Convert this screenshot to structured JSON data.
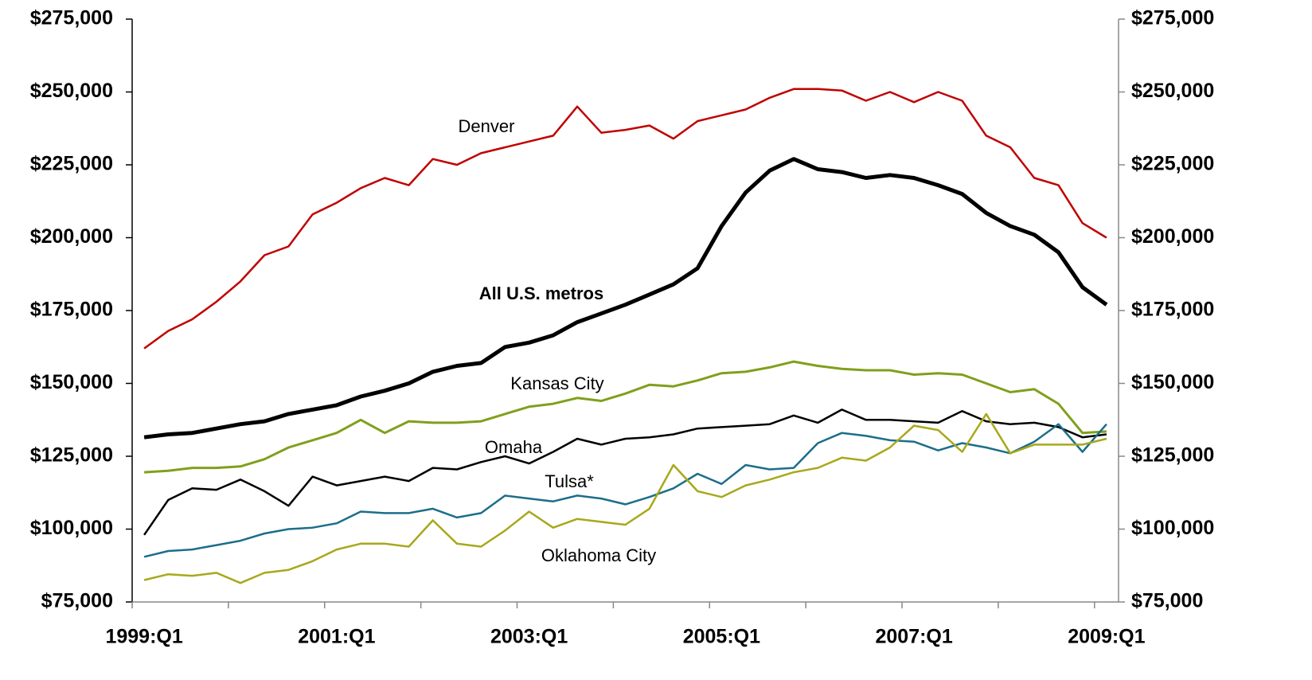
{
  "chart_data": {
    "type": "line",
    "categories": [
      "1999:Q1",
      null,
      null,
      null,
      null,
      null,
      null,
      null,
      "2001:Q1",
      null,
      null,
      null,
      null,
      null,
      null,
      null,
      "2003:Q1",
      null,
      null,
      null,
      null,
      null,
      null,
      null,
      "2005:Q1",
      null,
      null,
      null,
      null,
      null,
      null,
      null,
      "2007:Q1",
      null,
      null,
      null,
      null,
      null,
      null,
      null,
      "2009:Q1"
    ],
    "ylim": [
      75000,
      275000
    ],
    "yticks": [
      {
        "value": 75000,
        "label": "$75,000"
      },
      {
        "value": 100000,
        "label": "$100,000"
      },
      {
        "value": 125000,
        "label": "$125,000"
      },
      {
        "value": 150000,
        "label": "$150,000"
      },
      {
        "value": 175000,
        "label": "$175,000"
      },
      {
        "value": 200000,
        "label": "$200,000"
      },
      {
        "value": 225000,
        "label": "$225,000"
      },
      {
        "value": 250000,
        "label": "$250,000"
      },
      {
        "value": 275000,
        "label": "$275,000"
      }
    ],
    "grid": false,
    "series": [
      {
        "name": "Denver",
        "color": "#c00000",
        "values": [
          162000,
          168000,
          172000,
          178000,
          185000,
          194000,
          197000,
          208000,
          212000,
          217000,
          220500,
          218000,
          227000,
          225000,
          229000,
          231000,
          233000,
          235000,
          245000,
          236000,
          237000,
          238500,
          234000,
          240000,
          242000,
          244000,
          248000,
          251000,
          251000,
          250500,
          247000,
          250000,
          246500,
          250000,
          247000,
          235000,
          231000,
          220500,
          218000,
          205000,
          200000
        ]
      },
      {
        "name": "All U.S. metros",
        "color": "#000000",
        "values": [
          131500,
          132500,
          133000,
          134500,
          136000,
          137000,
          139500,
          141000,
          142500,
          145500,
          147500,
          150000,
          154000,
          156000,
          157000,
          162500,
          164000,
          166500,
          171000,
          174000,
          177000,
          180500,
          184000,
          189500,
          204000,
          215500,
          223000,
          227000,
          223500,
          222500,
          220500,
          221500,
          220500,
          218000,
          215000,
          208500,
          204000,
          201000,
          195000,
          183000,
          177000
        ]
      },
      {
        "name": "Kansas City",
        "color": "#7fa01c",
        "values": [
          119500,
          120000,
          121000,
          121000,
          121500,
          124000,
          128000,
          130500,
          133000,
          137500,
          133000,
          137000,
          136500,
          136500,
          137000,
          139500,
          142000,
          143000,
          145000,
          144000,
          146500,
          149500,
          149000,
          151000,
          153500,
          154000,
          155500,
          157500,
          156000,
          155000,
          154500,
          154500,
          153000,
          153500,
          153000,
          150000,
          147000,
          148000,
          143000,
          133000,
          133500
        ]
      },
      {
        "name": "Omaha",
        "color": "#000000",
        "values": [
          98000,
          110000,
          114000,
          113500,
          117000,
          113000,
          108000,
          118000,
          115000,
          116500,
          118000,
          116500,
          121000,
          120500,
          123000,
          125000,
          122500,
          126500,
          131000,
          129000,
          131000,
          131500,
          132500,
          134500,
          135000,
          135500,
          136000,
          139000,
          136500,
          141000,
          137500,
          137500,
          137000,
          136500,
          140500,
          137000,
          136000,
          136500,
          135000,
          131500,
          132500
        ]
      },
      {
        "name": "Tulsa*",
        "color": "#1c6e8a",
        "values": [
          90500,
          92500,
          93000,
          94500,
          96000,
          98500,
          100000,
          100500,
          102000,
          106000,
          105500,
          105500,
          107000,
          104000,
          105500,
          111500,
          110500,
          109500,
          111500,
          110500,
          108500,
          111000,
          114000,
          119000,
          115500,
          122000,
          120500,
          121000,
          129500,
          133000,
          132000,
          130500,
          130000,
          127000,
          129500,
          128000,
          126000,
          130000,
          136000,
          126500,
          136000
        ]
      },
      {
        "name": "Oklahoma City",
        "color": "#a8a81c",
        "values": [
          82500,
          84500,
          84000,
          85000,
          81500,
          85000,
          86000,
          89000,
          93000,
          95000,
          95000,
          94000,
          103000,
          95000,
          94000,
          99500,
          106000,
          100500,
          103500,
          102500,
          101500,
          107000,
          122000,
          113000,
          111000,
          115000,
          117000,
          119500,
          121000,
          124500,
          123500,
          128000,
          135500,
          134000,
          126500,
          139500,
          126000,
          129000,
          129000,
          129000,
          131000
        ]
      }
    ]
  }
}
